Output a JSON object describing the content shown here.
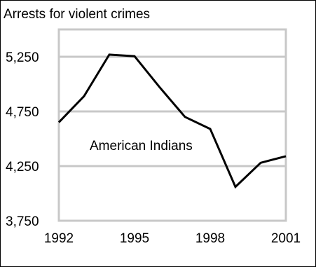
{
  "chart_data": {
    "type": "line",
    "title": "Arrests for violent crimes",
    "xlabel": "",
    "ylabel": "",
    "x": [
      1992,
      1993,
      1994,
      1995,
      1996,
      1997,
      1998,
      1999,
      2000,
      2001
    ],
    "x_tick_labels": [
      "1992",
      "1995",
      "1998",
      "2001"
    ],
    "x_ticks": [
      1992,
      1995,
      1998,
      2001
    ],
    "y_tick_labels": [
      "5,250",
      "4,750",
      "4,250",
      "3,750"
    ],
    "y_ticks": [
      5250,
      4750,
      4250,
      3750
    ],
    "ylim": [
      3750,
      5500
    ],
    "xlim": [
      1992,
      2001
    ],
    "grid": true,
    "colors": {
      "line": "#000000",
      "grid": "#c8c8c8"
    },
    "series": [
      {
        "name": "American Indians",
        "values": [
          4650,
          4890,
          5270,
          5255,
          4970,
          4700,
          4590,
          4060,
          4280,
          4340
        ]
      }
    ]
  }
}
